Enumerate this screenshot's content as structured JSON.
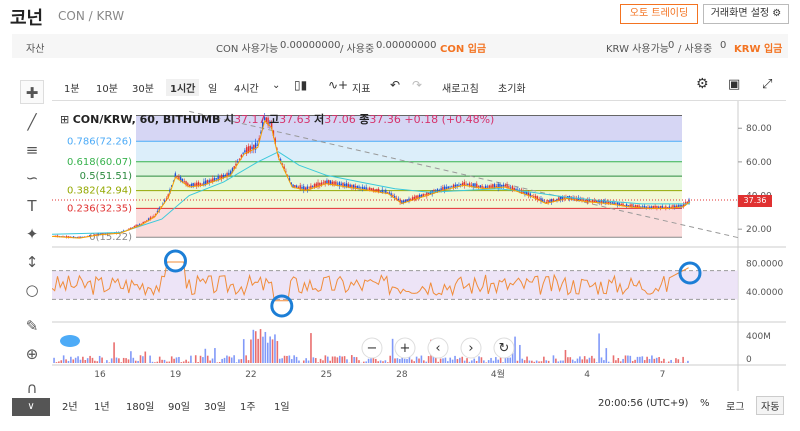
{
  "header": {
    "coin_name": "코넌",
    "pair": "CON / KRW",
    "auto_trading": "오토 트레이딩",
    "screen_setting": "거래화면 설정"
  },
  "asset": {
    "label": "자산",
    "con_available_label": "CON 사용가능",
    "con_available": "0.00000000",
    "con_in_use_label": "/ 사용중",
    "con_in_use": "0.00000000",
    "con_deposit": "CON 입금",
    "krw_available_label": "KRW 사용가능",
    "krw_available": "0",
    "krw_in_use_label": "/ 사용중",
    "krw_in_use": "0",
    "krw_deposit": "KRW 입금"
  },
  "toolbar": {
    "tf_1m": "1분",
    "tf_10m": "10분",
    "tf_30m": "30분",
    "tf_1h": "1시간",
    "tf_day": "일",
    "tf_4h": "4시간",
    "indicator": "지표",
    "refresh": "새로고침",
    "reset": "초기화"
  },
  "legend": {
    "title": "CON/KRW, 60, BITHUMB",
    "open_label": "시",
    "open": "37.17",
    "high_label": "고",
    "high": "37.63",
    "low_label": "저",
    "low": "37.06",
    "close_label": "종",
    "close": "37.36",
    "change": "+0.18 (+0.48%)"
  },
  "price_label": "37.36",
  "bottombar": {
    "r_2y": "2년",
    "r_1y": "1년",
    "r_180d": "180일",
    "r_90d": "90일",
    "r_30d": "30일",
    "r_1w": "1주",
    "r_1d": "1일",
    "time": "20:00:56 (UTC+9)",
    "percent": "%",
    "log": "로그",
    "auto": "자동"
  },
  "chart_data": {
    "type": "candlestick",
    "fib_levels": [
      {
        "label": "0.786(72.26)",
        "value": 72.26,
        "color": "#4dabf7"
      },
      {
        "label": "0.618(60.07)",
        "value": 60.07,
        "color": "#37b24d"
      },
      {
        "label": "0.5(51.51)",
        "value": 51.51,
        "color": "#2b8a3e"
      },
      {
        "label": "0.382(42.94)",
        "value": 42.94,
        "color": "#94a800"
      },
      {
        "label": "0.236(32.35)",
        "value": 32.35,
        "color": "#e03131"
      },
      {
        "label": "0(15.22)",
        "value": 15.22,
        "color": "#888888"
      }
    ],
    "fib_top": 87.6,
    "y_ticks": [
      "80.00",
      "60.00",
      "40.00",
      "20.00"
    ],
    "y_tick_values": [
      80,
      60,
      40,
      20
    ],
    "ylim": [
      10,
      95
    ],
    "rsi_ticks": [
      "80.0000",
      "40.0000"
    ],
    "rsi_tick_values": [
      80,
      40
    ],
    "rsi_bands": [
      70,
      30
    ],
    "volume_ticks": [
      "400M",
      "0"
    ],
    "x_ticks": [
      "16",
      "19",
      "22",
      "25",
      "28",
      "4월",
      "4",
      "7"
    ],
    "x_tick_frac": [
      0.07,
      0.18,
      0.29,
      0.4,
      0.51,
      0.65,
      0.78,
      0.89
    ],
    "price_path": [
      [
        0.0,
        16
      ],
      [
        0.04,
        15
      ],
      [
        0.07,
        17
      ],
      [
        0.1,
        18
      ],
      [
        0.13,
        23
      ],
      [
        0.15,
        28
      ],
      [
        0.17,
        40
      ],
      [
        0.18,
        52
      ],
      [
        0.2,
        46
      ],
      [
        0.22,
        47
      ],
      [
        0.24,
        50
      ],
      [
        0.26,
        53
      ],
      [
        0.28,
        66
      ],
      [
        0.3,
        70
      ],
      [
        0.31,
        86
      ],
      [
        0.32,
        82
      ],
      [
        0.33,
        64
      ],
      [
        0.34,
        55
      ],
      [
        0.35,
        46
      ],
      [
        0.37,
        44
      ],
      [
        0.4,
        48
      ],
      [
        0.43,
        46
      ],
      [
        0.46,
        44
      ],
      [
        0.49,
        42
      ],
      [
        0.51,
        36
      ],
      [
        0.54,
        40
      ],
      [
        0.57,
        44
      ],
      [
        0.6,
        47
      ],
      [
        0.63,
        45
      ],
      [
        0.66,
        46
      ],
      [
        0.68,
        43
      ],
      [
        0.7,
        40
      ],
      [
        0.72,
        36
      ],
      [
        0.75,
        39
      ],
      [
        0.78,
        37
      ],
      [
        0.81,
        36
      ],
      [
        0.84,
        34
      ],
      [
        0.87,
        33
      ],
      [
        0.9,
        33
      ],
      [
        0.92,
        34
      ],
      [
        0.93,
        37
      ]
    ],
    "ma_path": [
      [
        0.0,
        17
      ],
      [
        0.1,
        18
      ],
      [
        0.16,
        26
      ],
      [
        0.2,
        40
      ],
      [
        0.25,
        48
      ],
      [
        0.3,
        60
      ],
      [
        0.33,
        66
      ],
      [
        0.36,
        58
      ],
      [
        0.4,
        52
      ],
      [
        0.45,
        48
      ],
      [
        0.5,
        44
      ],
      [
        0.55,
        42
      ],
      [
        0.6,
        43
      ],
      [
        0.65,
        44
      ],
      [
        0.7,
        42
      ],
      [
        0.75,
        39
      ],
      [
        0.8,
        37
      ],
      [
        0.86,
        35
      ],
      [
        0.93,
        35
      ]
    ],
    "trend_line": [
      [
        0.2,
        90
      ],
      [
        1.0,
        15
      ]
    ],
    "current_price": 37.36
  }
}
